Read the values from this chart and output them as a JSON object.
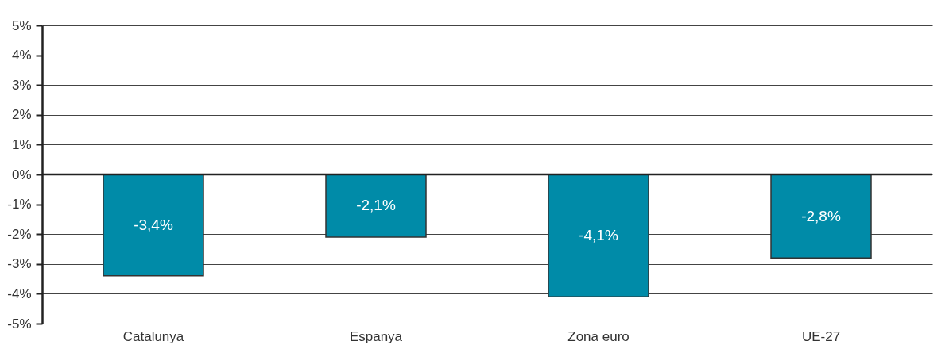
{
  "chart_data": {
    "type": "bar",
    "categories": [
      "Catalunya",
      "Espanya",
      "Zona euro",
      "UE-27"
    ],
    "values": [
      -3.4,
      -2.1,
      -4.1,
      -2.8
    ],
    "value_labels": [
      "-3,4%",
      "-2,1%",
      "-4,1%",
      "-2,8%"
    ],
    "color": "#008ba8",
    "ylim": [
      -5,
      5
    ],
    "yticks": [
      {
        "value": -5,
        "label": "-5%"
      },
      {
        "value": -4,
        "label": "-4%"
      },
      {
        "value": -3,
        "label": "-3%"
      },
      {
        "value": -2,
        "label": "-2%"
      },
      {
        "value": -1,
        "label": "-1%"
      },
      {
        "value": 0,
        "label": "0%"
      },
      {
        "value": 1,
        "label": "1%"
      },
      {
        "value": 2,
        "label": "2%"
      },
      {
        "value": 3,
        "label": "3%"
      },
      {
        "value": 4,
        "label": "4%"
      },
      {
        "value": 5,
        "label": "5%"
      }
    ],
    "grid": "y"
  }
}
